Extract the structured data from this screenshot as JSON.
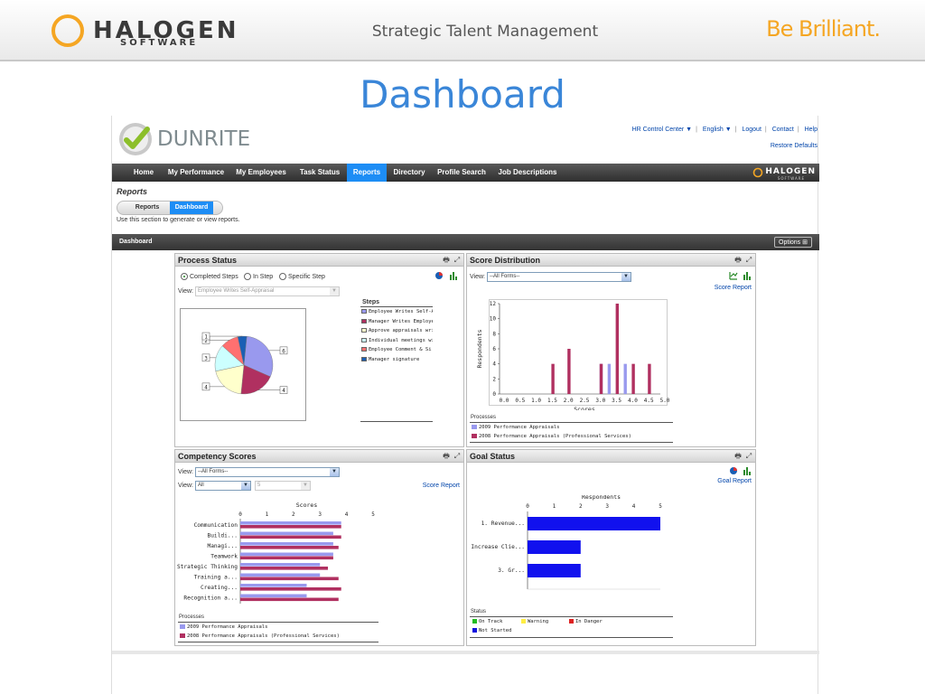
{
  "banner": {
    "logo_word": "HALOGEN",
    "logo_sub": "SOFTWARE",
    "tagline": "Strategic Talent Management",
    "slogan": "Be Brilliant.",
    "logo_color": "#f5a623"
  },
  "slide_title": "Dashboard",
  "app": {
    "company_name": "DUNRITE",
    "top_links": [
      "HR Control Center ▼",
      "English ▼",
      "Logout",
      "Contact",
      "Help"
    ],
    "restore_link": "Restore Defaults",
    "nav": [
      {
        "label": "Home",
        "active": false
      },
      {
        "label": "My Performance",
        "active": false
      },
      {
        "label": "My Employees",
        "active": false
      },
      {
        "label": "Task Status",
        "active": false
      },
      {
        "label": "Reports",
        "active": true
      },
      {
        "label": "Directory",
        "active": false
      },
      {
        "label": "Profile Search",
        "active": false
      },
      {
        "label": "Job Descriptions",
        "active": false
      }
    ],
    "nav_logo": "HALOGEN",
    "nav_logo_sub": "SOFTWARE",
    "accent_color": "#1d8df5",
    "section_title": "Reports",
    "subtabs": [
      {
        "label": "Reports",
        "active": false
      },
      {
        "label": "Dashboard",
        "active": true
      }
    ],
    "instructions": "Use this section to generate or view reports.",
    "dashboard_bar": {
      "title": "Dashboard",
      "options_label": "Options"
    }
  },
  "panels": {
    "process_status": {
      "title": "Process Status",
      "radios": [
        {
          "label": "Completed Steps",
          "checked": true
        },
        {
          "label": "In Step",
          "checked": false
        },
        {
          "label": "Specific Step",
          "checked": false
        }
      ],
      "view_label": "View:",
      "view_value": "Employee Writes Self-Appraisal",
      "steps_title": "Steps",
      "steps": [
        {
          "label": "Employee Writes Self-Ap",
          "color": "#9999ee"
        },
        {
          "label": "Manager Writes Employe",
          "color": "#b03060"
        },
        {
          "label": "Approve appraisals writt",
          "color": "#ffffcc"
        },
        {
          "label": "Individual meetings with",
          "color": "#ccffff"
        },
        {
          "label": "Employee Comment & Si",
          "color": "#ff7070"
        },
        {
          "label": "Manager signature",
          "color": "#1a5fb4"
        }
      ]
    },
    "score_distribution": {
      "title": "Score Distribution",
      "view_label": "View:",
      "view_value": "--All Forms--",
      "link": "Score Report",
      "processes_title": "Processes"
    },
    "competency_scores": {
      "title": "Competency Scores",
      "view_label": "View:",
      "view_value": "--All Forms--",
      "view2_label": "View:",
      "view2_value": "All",
      "view3_value": "5",
      "link": "Score Report",
      "processes_title": "Processes"
    },
    "goal_status": {
      "title": "Goal Status",
      "link": "Goal Report",
      "status_title": "Status",
      "status_items": [
        {
          "label": "On Track",
          "color": "#22bb22"
        },
        {
          "label": "Warning",
          "color": "#ffee44"
        },
        {
          "label": "In Danger",
          "color": "#dd2222"
        },
        {
          "label": "Not Started",
          "color": "#1111dd"
        }
      ]
    }
  },
  "chart_data": [
    {
      "id": "process_status_pie",
      "type": "pie",
      "labels": [
        "6",
        "4",
        "4",
        "3",
        "2",
        "1"
      ],
      "values": [
        6,
        4,
        4,
        3,
        2,
        1
      ],
      "colors": [
        "#9999ee",
        "#b03060",
        "#ffffcc",
        "#ccffff",
        "#ff7070",
        "#1a5fb4"
      ]
    },
    {
      "id": "score_distribution",
      "type": "bar",
      "xlabel": "Scores",
      "ylabel": "Respondents",
      "xlim": [
        0,
        5
      ],
      "ylim": [
        0,
        12
      ],
      "xticks": [
        "0.0",
        "0.5",
        "1.0",
        "1.5",
        "2.0",
        "2.5",
        "3.0",
        "3.5",
        "4.0",
        "4.5",
        "5.0"
      ],
      "yticks": [
        "0",
        "2",
        "4",
        "6",
        "8",
        "10",
        "12"
      ],
      "series": [
        {
          "name": "2009 Performance Appraisals",
          "color": "#9999ee",
          "x": [
            3.0,
            3.25,
            3.75
          ],
          "values": [
            4,
            4,
            4
          ]
        },
        {
          "name": "2008 Performance Appraisals (Professional Services)",
          "color": "#b03060",
          "x": [
            1.5,
            2.0,
            3.0,
            3.5,
            4.0,
            4.5
          ],
          "values": [
            4,
            6,
            4,
            12,
            4,
            4
          ]
        }
      ]
    },
    {
      "id": "competency_scores",
      "type": "bar",
      "orientation": "horizontal",
      "title": "Scores",
      "xlim": [
        0,
        5
      ],
      "xticks": [
        "0",
        "1",
        "2",
        "3",
        "4",
        "5"
      ],
      "categories": [
        "Communication",
        "Buildi...",
        "Managi...",
        "Teamwork",
        "Strategic Thinking",
        "Training a...",
        "Creating...",
        "Recognition a..."
      ],
      "series": [
        {
          "name": "2009 Performance Appraisals",
          "color": "#9999ee",
          "values": [
            3.8,
            3.5,
            3.5,
            3.5,
            3.0,
            3.0,
            2.5,
            2.5
          ]
        },
        {
          "name": "2008 Performance Appraisals (Professional Services)",
          "color": "#b03060",
          "values": [
            3.8,
            3.8,
            3.7,
            3.5,
            3.3,
            3.7,
            3.8,
            3.7
          ]
        }
      ]
    },
    {
      "id": "goal_status",
      "type": "bar",
      "orientation": "horizontal",
      "title": "Respondents",
      "xlim": [
        0,
        5
      ],
      "xticks": [
        "0",
        "1",
        "2",
        "3",
        "4",
        "5"
      ],
      "categories": [
        "1. Revenue...",
        "2. Increase Clie...",
        "3. Gr..."
      ],
      "series": [
        {
          "name": "Not Started",
          "color": "#1111ee",
          "values": [
            5,
            2,
            2
          ]
        }
      ]
    }
  ]
}
